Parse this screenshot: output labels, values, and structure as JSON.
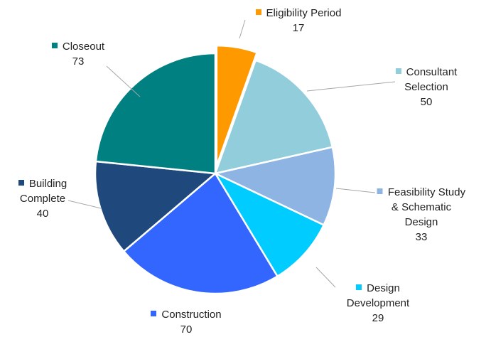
{
  "chart_data": {
    "type": "pie",
    "categories": [
      "Eligibility Period",
      "Consultant Selection",
      "Feasibility Study & Schematic Design",
      "Design Development",
      "Construction",
      "Building Complete",
      "Closeout"
    ],
    "values": [
      17,
      50,
      33,
      29,
      70,
      40,
      73
    ],
    "colors": [
      "#ff9900",
      "#92cddc",
      "#8eb4e3",
      "#00ccff",
      "#3366ff",
      "#1f497d",
      "#008080"
    ],
    "exploded_index": 0
  }
}
